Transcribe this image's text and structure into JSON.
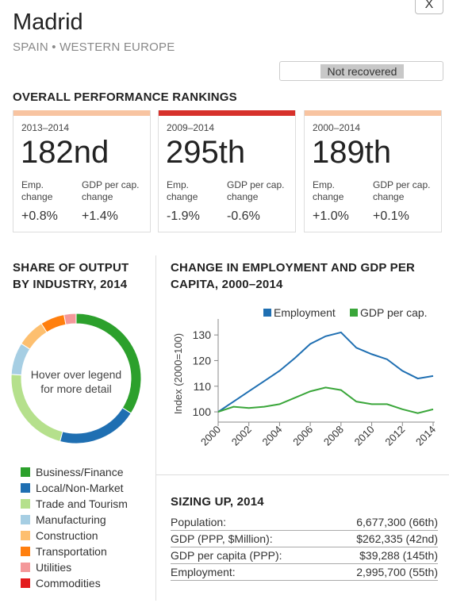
{
  "header": {
    "close_label": "X",
    "city": "Madrid",
    "region": "SPAIN • WESTERN EUROPE",
    "status": "Not recovered"
  },
  "rankings": {
    "title": "OVERALL PERFORMANCE RANKINGS",
    "cards": [
      {
        "period": "2013–2014",
        "rank": "182nd",
        "emp_label": "Emp. change",
        "gdp_label": "GDP per cap. change",
        "emp": "+0.8%",
        "gdp": "+1.4%",
        "color": "#f8c4a1"
      },
      {
        "period": "2009–2014",
        "rank": "295th",
        "emp_label": "Emp. change",
        "gdp_label": "GDP per cap. change",
        "emp": "-1.9%",
        "gdp": "-0.6%",
        "color": "#d7312b"
      },
      {
        "period": "2000–2014",
        "rank": "189th",
        "emp_label": "Emp. change",
        "gdp_label": "GDP per cap. change",
        "emp": "+1.0%",
        "gdp": "+0.1%",
        "color": "#f8c4a1"
      }
    ]
  },
  "share": {
    "title_line1": "SHARE OF OUTPUT",
    "title_line2": "BY INDUSTRY, 2014",
    "center_text": "Hover over legend for more detail",
    "legend": [
      {
        "label": "Business/Finance",
        "color": "#2ca02c"
      },
      {
        "label": "Local/Non-Market",
        "color": "#1f6fb2"
      },
      {
        "label": "Trade and Tourism",
        "color": "#b5e08c"
      },
      {
        "label": "Manufacturing",
        "color": "#a6cee3"
      },
      {
        "label": "Construction",
        "color": "#fdbf6f"
      },
      {
        "label": "Transportation",
        "color": "#ff7f0e"
      },
      {
        "label": "Utilities",
        "color": "#f4989a"
      },
      {
        "label": "Commodities",
        "color": "#e31a1c"
      }
    ]
  },
  "chart_data": [
    {
      "type": "pie",
      "labels": [
        "Business/Finance",
        "Local/Non-Market",
        "Trade and Tourism",
        "Manufacturing",
        "Construction",
        "Transportation",
        "Utilities",
        "Commodities"
      ],
      "values": [
        34,
        20,
        22,
        8,
        7,
        6,
        3,
        0
      ]
    },
    {
      "type": "line",
      "title_line1": "CHANGE IN EMPLOYMENT AND GDP PER",
      "title_line2": "CAPITA, 2000–2014",
      "ylabel": "Index (2000=100)",
      "ylim": [
        96,
        135
      ],
      "yticks": [
        100,
        110,
        120,
        130
      ],
      "xticks": [
        2000,
        2002,
        2004,
        2006,
        2008,
        2010,
        2012,
        2014
      ],
      "x": [
        2000,
        2001,
        2002,
        2003,
        2004,
        2005,
        2006,
        2007,
        2008,
        2009,
        2010,
        2011,
        2012,
        2013,
        2014
      ],
      "legend_position": "top-right",
      "series": [
        {
          "name": "Employment",
          "color": "#1f6fb2",
          "values": [
            100,
            104,
            108,
            112,
            116,
            121,
            126.5,
            129.5,
            131,
            125,
            122.5,
            120.5,
            116,
            113,
            114
          ]
        },
        {
          "name": "GDP per cap.",
          "color": "#3aa63a",
          "values": [
            100,
            102,
            101.5,
            102,
            103,
            105.5,
            108,
            109.5,
            108.5,
            104,
            103,
            103,
            101,
            99.5,
            101
          ]
        }
      ]
    }
  ],
  "sizing": {
    "title": "SIZING UP, 2014",
    "rows": [
      {
        "label": "Population:",
        "value": "6,677,300 (66th)"
      },
      {
        "label": "GDP (PPP, $Million):",
        "value": "$262,335 (42nd)"
      },
      {
        "label": "GDP per capita (PPP):",
        "value": "$39,288 (145th)"
      },
      {
        "label": "Employment:",
        "value": "2,995,700 (55th)"
      }
    ]
  }
}
